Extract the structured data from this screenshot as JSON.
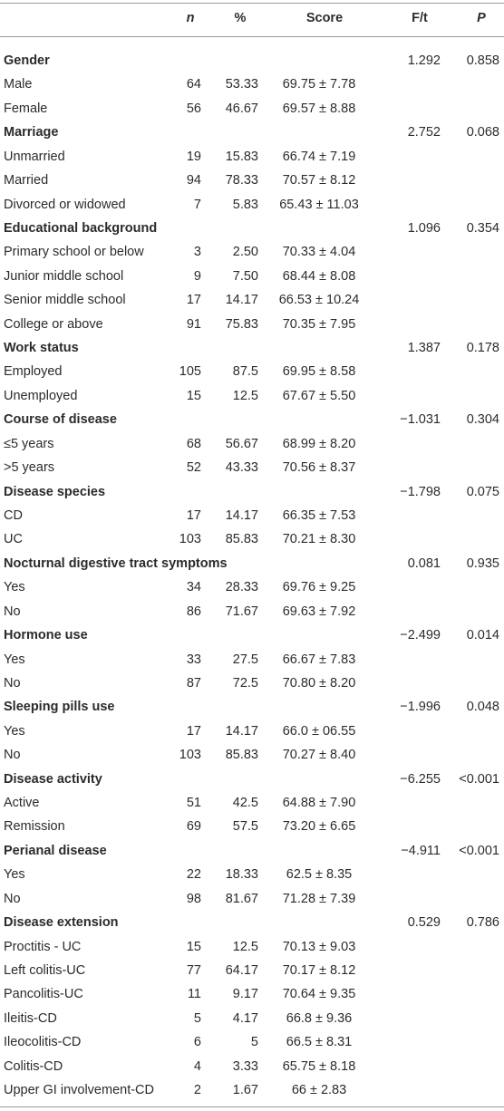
{
  "table": {
    "headers": {
      "n": "n",
      "pct": "%",
      "score": "Score",
      "ft": "F/t",
      "p": "P"
    },
    "rows": [
      {
        "label": "Gender",
        "ft": "1.292",
        "p": "0.858"
      },
      {
        "label": "Male",
        "n": "64",
        "pct": "53.33",
        "score": "69.75 ± 7.78"
      },
      {
        "label": "Female",
        "n": "56",
        "pct": "46.67",
        "score": "69.57 ± 8.88"
      },
      {
        "label": "Marriage",
        "ft": "2.752",
        "p": "0.068"
      },
      {
        "label": "Unmarried",
        "n": "19",
        "pct": "15.83",
        "score": "66.74 ± 7.19"
      },
      {
        "label": "Married",
        "n": "94",
        "pct": "78.33",
        "score": "70.57 ± 8.12"
      },
      {
        "label": "Divorced or widowed",
        "n": "7",
        "pct": "5.83",
        "score": "65.43 ± 11.03"
      },
      {
        "label": "Educational background",
        "ft": "1.096",
        "p": "0.354"
      },
      {
        "label": "Primary school or below",
        "n": "3",
        "pct": "2.50",
        "score": "70.33 ± 4.04"
      },
      {
        "label": "Junior middle school",
        "n": "9",
        "pct": "7.50",
        "score": "68.44 ± 8.08"
      },
      {
        "label": "Senior middle school",
        "n": "17",
        "pct": "14.17",
        "score": "66.53 ± 10.24"
      },
      {
        "label": "College or above",
        "n": "91",
        "pct": "75.83",
        "score": "70.35 ± 7.95"
      },
      {
        "label": "Work status",
        "ft": "1.387",
        "p": "0.178"
      },
      {
        "label": "Employed",
        "n": "105",
        "pct": "87.5",
        "score": "69.95 ± 8.58"
      },
      {
        "label": "Unemployed",
        "n": "15",
        "pct": "12.5",
        "score": "67.67 ± 5.50"
      },
      {
        "label": "Course of disease",
        "ft": "−1.031",
        "p": "0.304"
      },
      {
        "label": "≤5 years",
        "n": "68",
        "pct": "56.67",
        "score": "68.99 ± 8.20"
      },
      {
        "label": ">5 years",
        "n": "52",
        "pct": "43.33",
        "score": "70.56 ± 8.37"
      },
      {
        "label": "Disease species",
        "ft": "−1.798",
        "p": "0.075"
      },
      {
        "label": "CD",
        "n": "17",
        "pct": "14.17",
        "score": "66.35 ± 7.53"
      },
      {
        "label": "UC",
        "n": "103",
        "pct": "85.83",
        "score": "70.21 ± 8.30"
      },
      {
        "label": "Nocturnal digestive tract symptoms",
        "ft": "0.081",
        "p": "0.935"
      },
      {
        "label": "Yes",
        "n": "34",
        "pct": "28.33",
        "score": "69.76 ± 9.25"
      },
      {
        "label": "No",
        "n": "86",
        "pct": "71.67",
        "score": "69.63 ± 7.92"
      },
      {
        "label": "Hormone use",
        "ft": "−2.499",
        "p": "0.014"
      },
      {
        "label": "Yes",
        "n": "33",
        "pct": "27.5",
        "score": "66.67 ± 7.83"
      },
      {
        "label": "No",
        "n": "87",
        "pct": "72.5",
        "score": "70.80 ± 8.20"
      },
      {
        "label": "Sleeping pills use",
        "ft": "−1.996",
        "p": "0.048"
      },
      {
        "label": "Yes",
        "n": "17",
        "pct": "14.17",
        "score": "66.0 ± 06.55"
      },
      {
        "label": "No",
        "n": "103",
        "pct": "85.83",
        "score": "70.27 ± 8.40"
      },
      {
        "label": "Disease activity",
        "ft": "−6.255",
        "p": "<0.001"
      },
      {
        "label": "Active",
        "n": "51",
        "pct": "42.5",
        "score": "64.88 ± 7.90"
      },
      {
        "label": "Remission",
        "n": "69",
        "pct": "57.5",
        "score": "73.20 ± 6.65"
      },
      {
        "label": "Perianal disease",
        "ft": "−4.911",
        "p": "<0.001"
      },
      {
        "label": "Yes",
        "n": "22",
        "pct": "18.33",
        "score": "62.5 ± 8.35"
      },
      {
        "label": "No",
        "n": "98",
        "pct": "81.67",
        "score": "71.28 ± 7.39"
      },
      {
        "label": "Disease extension",
        "ft": "0.529",
        "p": "0.786"
      },
      {
        "label": "Proctitis - UC",
        "n": "15",
        "pct": "12.5",
        "score": "70.13 ± 9.03"
      },
      {
        "label": "Left colitis-UC",
        "n": "77",
        "pct": "64.17",
        "score": "70.17 ± 8.12"
      },
      {
        "label": "Pancolitis-UC",
        "n": "11",
        "pct": "9.17",
        "score": "70.64 ± 9.35"
      },
      {
        "label": "Ileitis-CD",
        "n": "5",
        "pct": "4.17",
        "score": "66.8 ± 9.36"
      },
      {
        "label": "Ileocolitis-CD",
        "n": "6",
        "pct": "5",
        "score": "66.5 ± 8.31"
      },
      {
        "label": "Colitis-CD",
        "n": "4",
        "pct": "3.33",
        "score": "65.75 ± 8.18"
      },
      {
        "label": "Upper GI involvement-CD",
        "n": "2",
        "pct": "1.67",
        "score": "66 ± 2.83"
      }
    ]
  }
}
